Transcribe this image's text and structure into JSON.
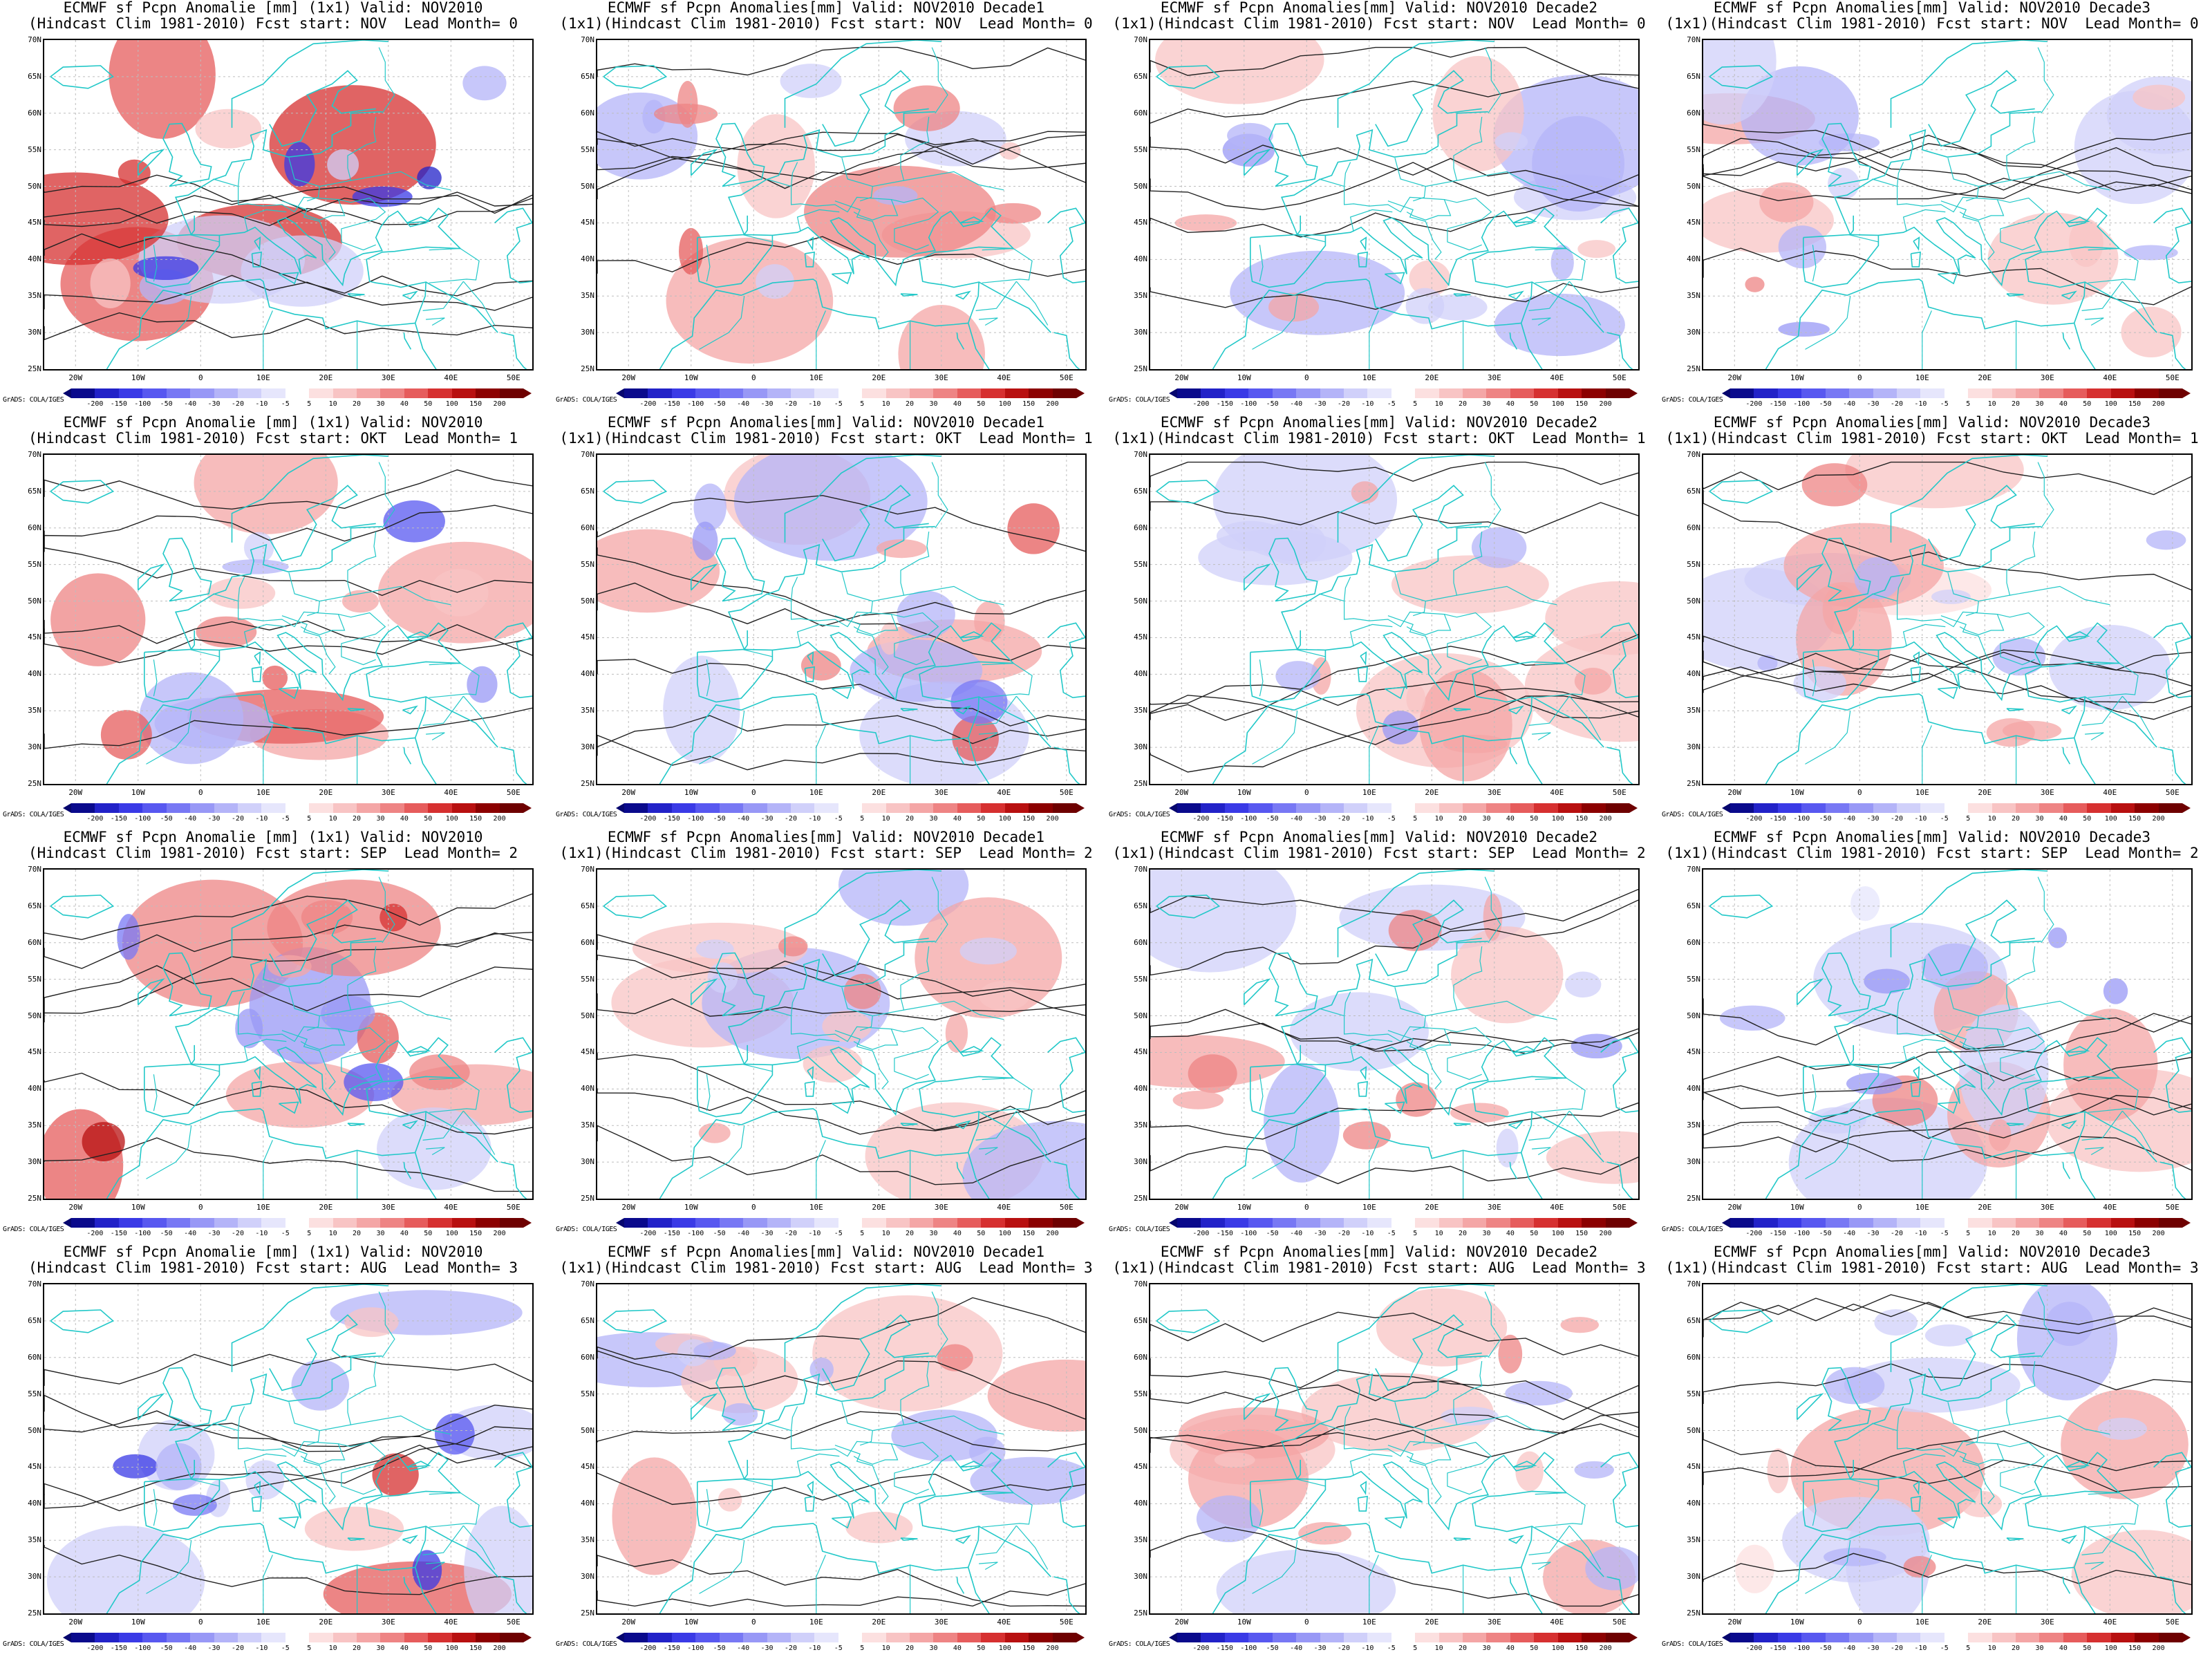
{
  "panels": [
    {
      "line1": "ECMWF sf Pcpn Anomalie [mm] (1x1) Valid: NOV2010",
      "line2": "(Hindcast Clim 1981-2010) Fcst start: NOV  Lead Month= 0"
    },
    {
      "line1": "ECMWF sf Pcpn Anomalies[mm] Valid: NOV2010 Decade1",
      "line2": "(1x1)(Hindcast Clim 1981-2010) Fcst start: NOV  Lead Month= 0"
    },
    {
      "line1": "ECMWF sf Pcpn Anomalies[mm] Valid: NOV2010 Decade2",
      "line2": "(1x1)(Hindcast Clim 1981-2010) Fcst start: NOV  Lead Month= 0"
    },
    {
      "line1": "ECMWF sf Pcpn Anomalies[mm] Valid: NOV2010 Decade3",
      "line2": "(1x1)(Hindcast Clim 1981-2010) Fcst start: NOV  Lead Month= 0"
    },
    {
      "line1": "ECMWF sf Pcpn Anomalie [mm] (1x1) Valid: NOV2010",
      "line2": "(Hindcast Clim 1981-2010) Fcst start: OKT  Lead Month= 1"
    },
    {
      "line1": "ECMWF sf Pcpn Anomalies[mm] Valid: NOV2010 Decade1",
      "line2": "(1x1)(Hindcast Clim 1981-2010) Fcst start: OKT  Lead Month= 1"
    },
    {
      "line1": "ECMWF sf Pcpn Anomalies[mm] Valid: NOV2010 Decade2",
      "line2": "(1x1)(Hindcast Clim 1981-2010) Fcst start: OKT  Lead Month= 1"
    },
    {
      "line1": "ECMWF sf Pcpn Anomalies[mm] Valid: NOV2010 Decade3",
      "line2": "(1x1)(Hindcast Clim 1981-2010) Fcst start: OKT  Lead Month= 1"
    },
    {
      "line1": "ECMWF sf Pcpn Anomalie [mm] (1x1) Valid: NOV2010",
      "line2": "(Hindcast Clim 1981-2010) Fcst start: SEP  Lead Month= 2"
    },
    {
      "line1": "ECMWF sf Pcpn Anomalies[mm] Valid: NOV2010 Decade1",
      "line2": "(1x1)(Hindcast Clim 1981-2010) Fcst start: SEP  Lead Month= 2"
    },
    {
      "line1": "ECMWF sf Pcpn Anomalies[mm] Valid: NOV2010 Decade2",
      "line2": "(1x1)(Hindcast Clim 1981-2010) Fcst start: SEP  Lead Month= 2"
    },
    {
      "line1": "ECMWF sf Pcpn Anomalies[mm] Valid: NOV2010 Decade3",
      "line2": "(1x1)(Hindcast Clim 1981-2010) Fcst start: SEP  Lead Month= 2"
    },
    {
      "line1": "ECMWF sf Pcpn Anomalie [mm] (1x1) Valid: NOV2010",
      "line2": "(Hindcast Clim 1981-2010) Fcst start: AUG  Lead Month= 3"
    },
    {
      "line1": "ECMWF sf Pcpn Anomalies[mm] Valid: NOV2010 Decade1",
      "line2": "(1x1)(Hindcast Clim 1981-2010) Fcst start: AUG  Lead Month= 3"
    },
    {
      "line1": "ECMWF sf Pcpn Anomalies[mm] Valid: NOV2010 Decade2",
      "line2": "(1x1)(Hindcast Clim 1981-2010) Fcst start: AUG  Lead Month= 3"
    },
    {
      "line1": "ECMWF sf Pcpn Anomalies[mm] Valid: NOV2010 Decade3",
      "line2": "(1x1)(Hindcast Clim 1981-2010) Fcst start: AUG  Lead Month= 3"
    }
  ],
  "lat_labels": [
    "70N",
    "65N",
    "60N",
    "55N",
    "50N",
    "45N",
    "40N",
    "35N",
    "30N",
    "25N"
  ],
  "lon_labels": [
    "20W",
    "10W",
    "0",
    "10E",
    "20E",
    "30E",
    "40E",
    "50E"
  ],
  "colorbar": {
    "labels": [
      "-200",
      "-150",
      "-100",
      "-50",
      "-40",
      "-30",
      "-20",
      "-10",
      "-5",
      "5",
      "10",
      "20",
      "30",
      "40",
      "50",
      "100",
      "150",
      "200"
    ],
    "colors": [
      "#0a0a8c",
      "#2222c8",
      "#3a3ae6",
      "#5858f0",
      "#7878f4",
      "#9898f6",
      "#b4b4f8",
      "#d0d0fa",
      "#e6e6fc",
      "#ffffff",
      "#fce0e0",
      "#f8c4c4",
      "#f4a6a6",
      "#ee8484",
      "#e65c5c",
      "#d63030",
      "#b81010",
      "#8c0000",
      "#6e0000"
    ]
  },
  "credit": "GrADS: COLA/IGES",
  "map_colors": {
    "coast": "#22c8c8",
    "contour": "#222222",
    "grid": "#bdbdbd"
  }
}
